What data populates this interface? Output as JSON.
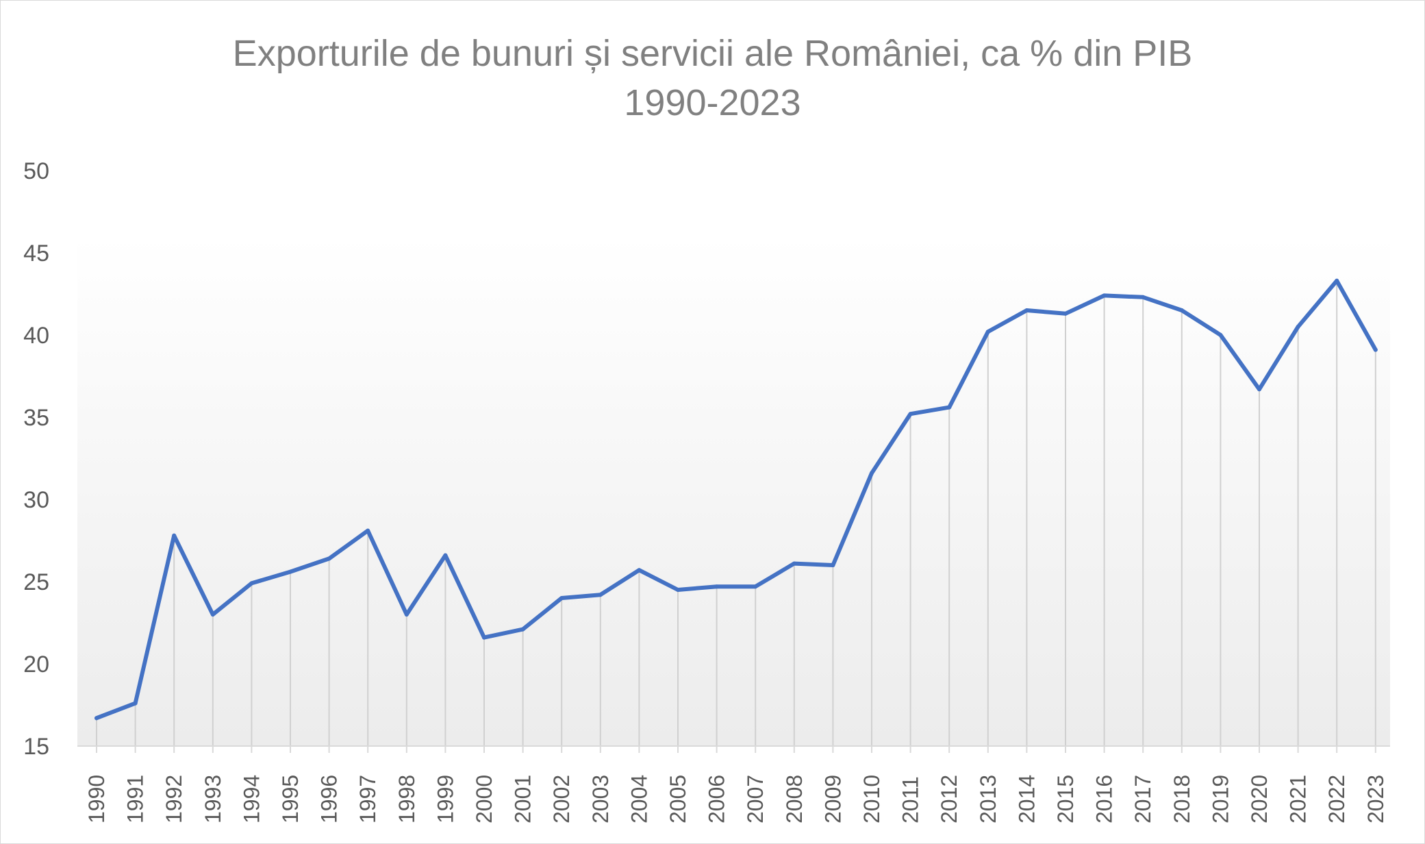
{
  "chart_data": {
    "type": "line",
    "title": "Exporturile de bunuri și servicii ale României, ca % din PIB",
    "subtitle": "1990-2023",
    "xlabel": "",
    "ylabel": "",
    "ylim": [
      15,
      50
    ],
    "yticks": [
      15,
      20,
      25,
      30,
      35,
      40,
      45,
      50
    ],
    "grid": "vertical drop lines",
    "legend": "none",
    "line_color": "#4472C4",
    "categories": [
      "1990",
      "1991",
      "1992",
      "1993",
      "1994",
      "1995",
      "1996",
      "1997",
      "1998",
      "1999",
      "2000",
      "2001",
      "2002",
      "2003",
      "2004",
      "2005",
      "2006",
      "2007",
      "2008",
      "2009",
      "2010",
      "2011",
      "2012",
      "2013",
      "2014",
      "2015",
      "2016",
      "2017",
      "2018",
      "2019",
      "2020",
      "2021",
      "2022",
      "2023"
    ],
    "values": [
      16.7,
      17.6,
      27.8,
      23.0,
      24.9,
      25.6,
      26.4,
      28.1,
      23.0,
      26.6,
      21.6,
      22.1,
      24.0,
      24.2,
      25.7,
      24.5,
      24.7,
      24.7,
      26.1,
      26.0,
      31.6,
      35.2,
      35.6,
      40.2,
      41.5,
      41.3,
      42.4,
      42.3,
      41.5,
      40.0,
      36.7,
      40.5,
      43.3,
      39.1
    ]
  }
}
